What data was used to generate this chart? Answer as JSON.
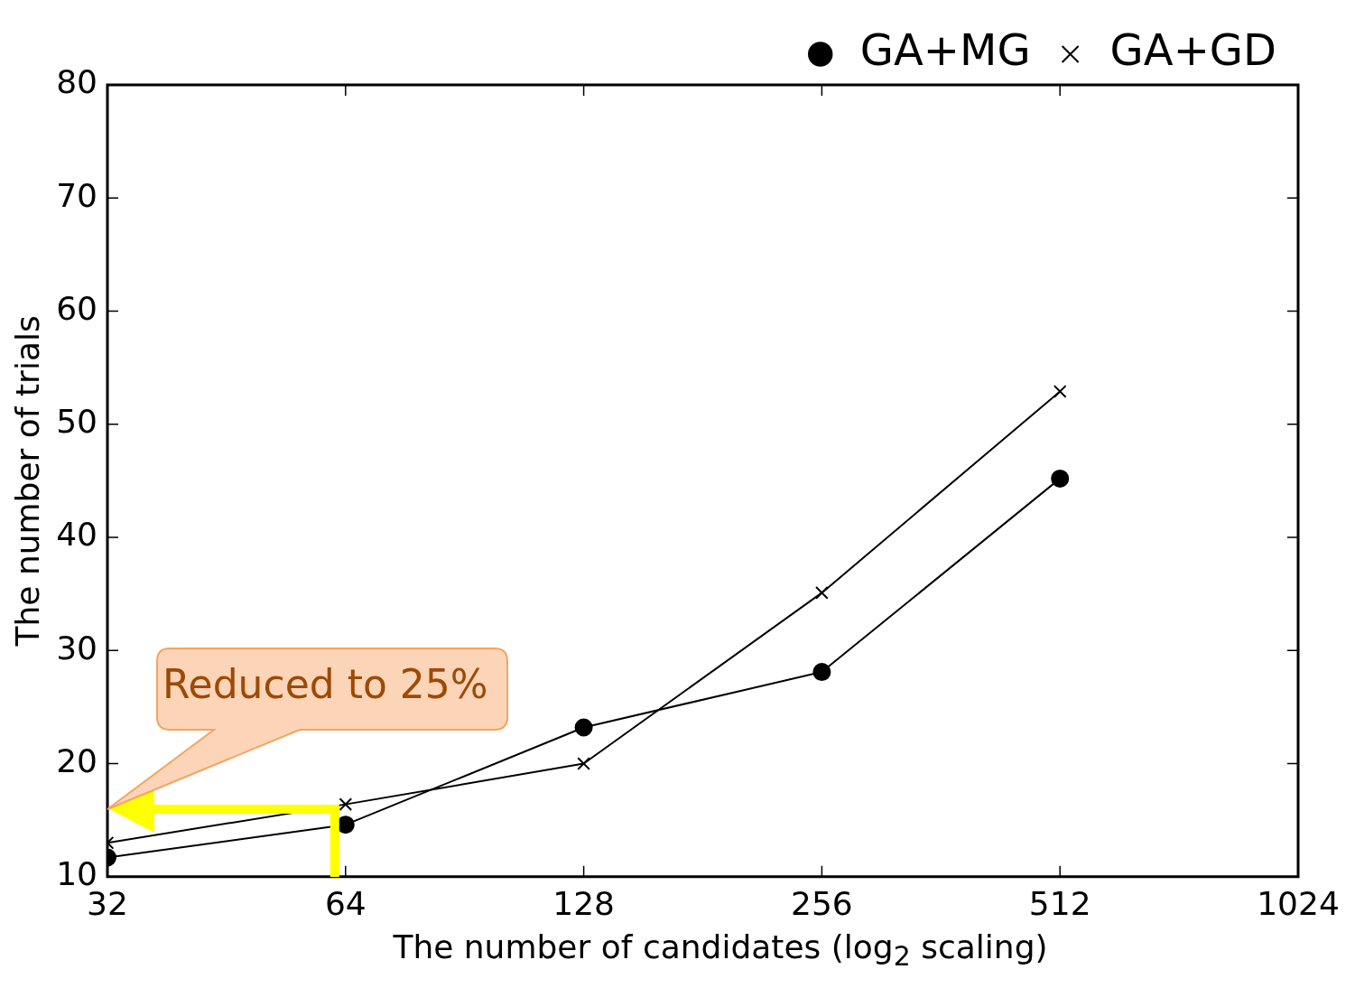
{
  "chart_data": {
    "type": "line",
    "xlabel": "The number of candidates (log$_{2}$ scaling)",
    "ylabel": "The number of trials",
    "x": [
      32,
      64,
      128,
      256,
      512
    ],
    "series": [
      {
        "name": "GA+MG",
        "color": "#000000",
        "marker": "circle",
        "values": [
          11.7,
          14.6,
          23.2,
          28.1,
          45.2
        ]
      },
      {
        "name": "GA+GD",
        "color": "#000000",
        "marker": "cross",
        "values": [
          13.0,
          16.4,
          20.0,
          35.1,
          52.9
        ]
      }
    ],
    "log": "x",
    "xlim": [
      32,
      1024
    ],
    "xticks": [
      32,
      64,
      128,
      256,
      512,
      1024
    ],
    "ylim": [
      10,
      80
    ],
    "yticks": [
      10,
      20,
      30,
      40,
      50,
      60,
      70,
      80
    ],
    "grid": false,
    "legend": "top right",
    "line_style": "solid",
    "annotations": [
      "Reduced to 25%"
    ]
  }
}
